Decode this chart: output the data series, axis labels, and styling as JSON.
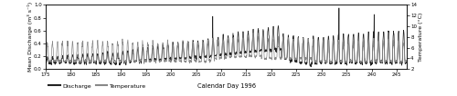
{
  "title": "",
  "xlabel": "Calendar Day 1996",
  "ylabel_left": "Mean Discharge (m³ s⁻¹)",
  "ylabel_right": "Temperature (°C)",
  "x_min": 175,
  "x_max": 247,
  "y_left_min": 0,
  "y_left_max": 1,
  "y_right_min": 2,
  "y_right_max": 14,
  "discharge_color": "#222222",
  "temperature_color": "#888888",
  "discharge_lw": 0.5,
  "temperature_lw": 0.5,
  "legend_discharge": "Discharge",
  "legend_temperature": "Temperature",
  "xticks": [
    175,
    180,
    185,
    190,
    195,
    200,
    205,
    210,
    215,
    220,
    225,
    230,
    235,
    240,
    245
  ],
  "yticks_left": [
    0,
    0.2,
    0.4,
    0.6,
    0.8,
    1
  ],
  "yticks_right": [
    2,
    4,
    6,
    8,
    10,
    12,
    14
  ],
  "figsize": [
    5.0,
    1.06
  ],
  "dpi": 100
}
